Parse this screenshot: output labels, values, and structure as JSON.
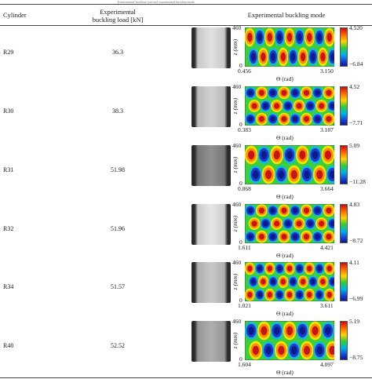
{
  "caption": "Experimental buckling load and experimental buckling mode",
  "headers": {
    "cylinder": "Cylinder",
    "load_line1": "Experimental",
    "load_line2": "buckling load [kN]",
    "mode": "Experimental buckling mode"
  },
  "axes": {
    "z_label": "z (mm)",
    "theta_label": "Θ (rad)",
    "z_max": "460",
    "z_min": "0"
  },
  "colors": {
    "red": "#c81414",
    "orange": "#ff8c00",
    "yellow": "#f2e600",
    "green": "#3ccf3c",
    "cyan": "#12b6e8",
    "blue": "#1e3cc8",
    "navy": "#0d1a8c"
  },
  "rows": [
    {
      "cylinder": "R29",
      "load": "36.3",
      "theta_min": "0.456",
      "theta_max": "3.150",
      "cmax": "4.520",
      "cmin": "−6.84"
    },
    {
      "cylinder": "R30",
      "load": "38.3",
      "theta_min": "0.383",
      "theta_max": "3.187",
      "cmax": "4.52",
      "cmin": "−7.71"
    },
    {
      "cylinder": "R31",
      "load": "51.98",
      "theta_min": "0.868",
      "theta_max": "3.664",
      "cmax": "5.09",
      "cmin": "−11.28"
    },
    {
      "cylinder": "R32",
      "load": "51.96",
      "theta_min": "1.611",
      "theta_max": "4.421",
      "cmax": "4.83",
      "cmin": "−8.72"
    },
    {
      "cylinder": "R34",
      "load": "51.57",
      "theta_min": "1.021",
      "theta_max": "3.611",
      "cmax": "4.11",
      "cmin": "−6.99"
    },
    {
      "cylinder": "R40",
      "load": "52.52",
      "theta_min": "1.604",
      "theta_max": "4.097",
      "cmax": "5.19",
      "cmin": "−8.75"
    }
  ]
}
